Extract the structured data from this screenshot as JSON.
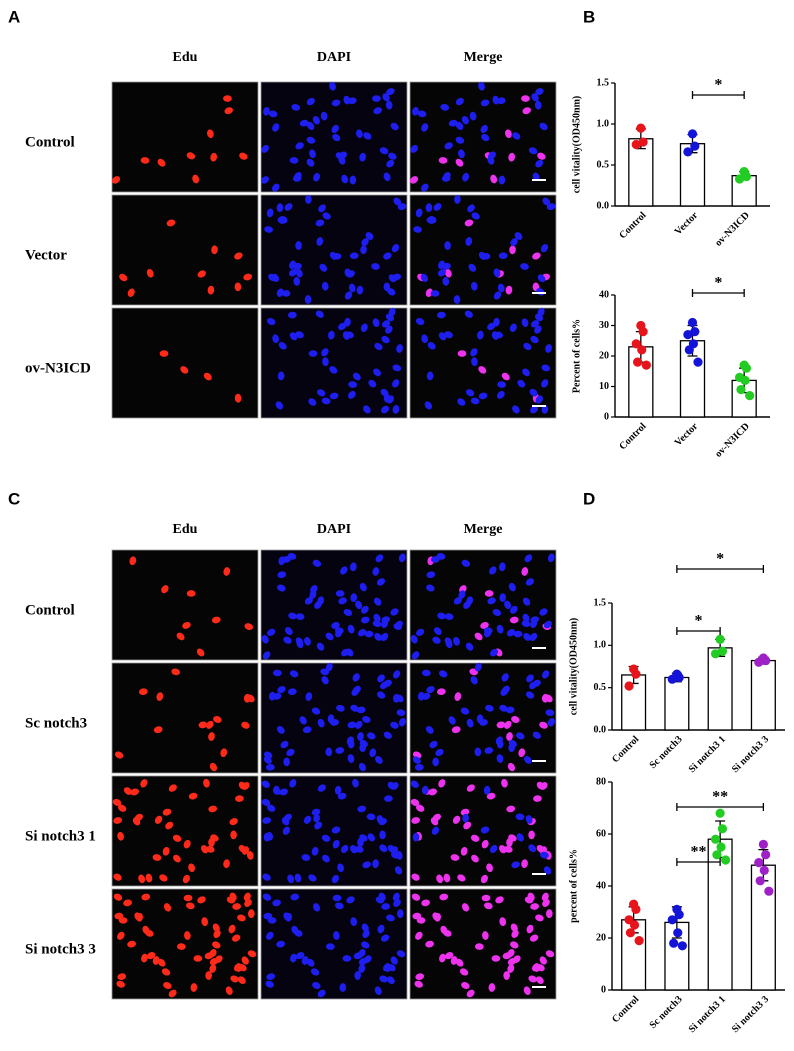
{
  "panel_letters": [
    "A",
    "B",
    "C",
    "D"
  ],
  "image_panels": [
    {
      "columns": [
        "Edu",
        "DAPI",
        "Merge"
      ],
      "rows": [
        "Control",
        "Vector",
        "ov-N3ICD"
      ]
    },
    {
      "columns": [
        "Edu",
        "DAPI",
        "Merge"
      ],
      "rows": [
        "Control",
        "Sc notch3",
        "Si notch3 1",
        "Si notch3 3"
      ]
    }
  ],
  "chart_data": [
    {
      "type": "bar",
      "ylabel": "cell vitality(OD450nm)",
      "categories": [
        "Control",
        "Vector",
        "ov-N3ICD"
      ],
      "colors": [
        "#e8141c",
        "#1414d8",
        "#22cc22"
      ],
      "values": [
        0.82,
        0.76,
        0.37
      ],
      "errors": [
        0.12,
        0.11,
        0.05
      ],
      "points": [
        [
          0.95,
          0.78,
          0.75
        ],
        [
          0.88,
          0.73,
          0.66
        ],
        [
          0.42,
          0.36,
          0.33
        ]
      ],
      "ylim": [
        0,
        1.5
      ],
      "yticks": [
        {
          "value": 0,
          "label": "0.0"
        },
        {
          "value": 0.5,
          "label": "0.5"
        },
        {
          "value": 1,
          "label": "1.0"
        },
        {
          "value": 1.5,
          "label": "1.5"
        }
      ],
      "comparisons": [
        {
          "groups": [
            "Vector",
            "ov-N3ICD"
          ],
          "label": "*"
        }
      ]
    },
    {
      "type": "bar",
      "ylabel": "Percent of cells%",
      "categories": [
        "Control",
        "Vector",
        "ov-N3ICD"
      ],
      "colors": [
        "#e8141c",
        "#1414d8",
        "#22cc22"
      ],
      "values": [
        23,
        25,
        12
      ],
      "errors": [
        5,
        5,
        4
      ],
      "points": [
        [
          30,
          28,
          24,
          22,
          18,
          17
        ],
        [
          31,
          28,
          27,
          24,
          22,
          18
        ],
        [
          17,
          16,
          13,
          12,
          9,
          7
        ]
      ],
      "ylim": [
        0,
        40
      ],
      "yticks": [
        0,
        10,
        20,
        30,
        40
      ],
      "comparisons": [
        {
          "groups": [
            "Vector",
            "ov-N3ICD"
          ],
          "label": "*"
        }
      ]
    },
    {
      "type": "bar",
      "ylabel": "cell vitality(OD450nm)",
      "categories": [
        "Control",
        "Sc notch3",
        "Si notch3 1",
        "Si notch3 3"
      ],
      "colors": [
        "#e8141c",
        "#1414d8",
        "#22cc22",
        "#a020c8"
      ],
      "values": [
        0.65,
        0.62,
        0.97,
        0.82
      ],
      "errors": [
        0.1,
        0.05,
        0.1,
        0.04
      ],
      "points": [
        [
          0.72,
          0.66,
          0.52
        ],
        [
          0.66,
          0.62,
          0.6
        ],
        [
          1.07,
          0.93,
          0.9
        ],
        [
          0.85,
          0.82,
          0.8
        ]
      ],
      "ylim": [
        0,
        1.5
      ],
      "yticks": [
        {
          "value": 0,
          "label": "0.0"
        },
        {
          "value": 0.5,
          "label": "0.5"
        },
        {
          "value": 1,
          "label": "1.0"
        },
        {
          "value": 1.5,
          "label": "1.5"
        }
      ],
      "comparisons": [
        {
          "groups": [
            "Sc notch3",
            "Si notch3 1"
          ],
          "label": "*"
        },
        {
          "groups": [
            "Sc notch3",
            "Si notch3 3"
          ],
          "label": "*"
        }
      ]
    },
    {
      "type": "bar",
      "ylabel": "percent of cells%",
      "categories": [
        "Control",
        "Sc notch3",
        "Si notch3 1",
        "Si notch3 3"
      ],
      "colors": [
        "#e8141c",
        "#1414d8",
        "#22cc22",
        "#a020c8"
      ],
      "values": [
        27,
        26,
        58,
        48
      ],
      "errors": [
        5,
        6,
        7,
        6
      ],
      "points": [
        [
          33,
          31,
          27,
          25,
          22,
          19
        ],
        [
          31,
          29,
          27,
          22,
          18,
          17
        ],
        [
          68,
          62,
          58,
          55,
          52,
          50
        ],
        [
          56,
          52,
          49,
          46,
          42,
          38
        ]
      ],
      "ylim": [
        0,
        80
      ],
      "yticks": [
        0,
        20,
        40,
        60,
        80
      ],
      "comparisons": [
        {
          "groups": [
            "Sc notch3",
            "Si notch3 1"
          ],
          "label": "**"
        },
        {
          "groups": [
            "Sc notch3",
            "Si notch3 3"
          ],
          "label": "**"
        }
      ]
    }
  ]
}
